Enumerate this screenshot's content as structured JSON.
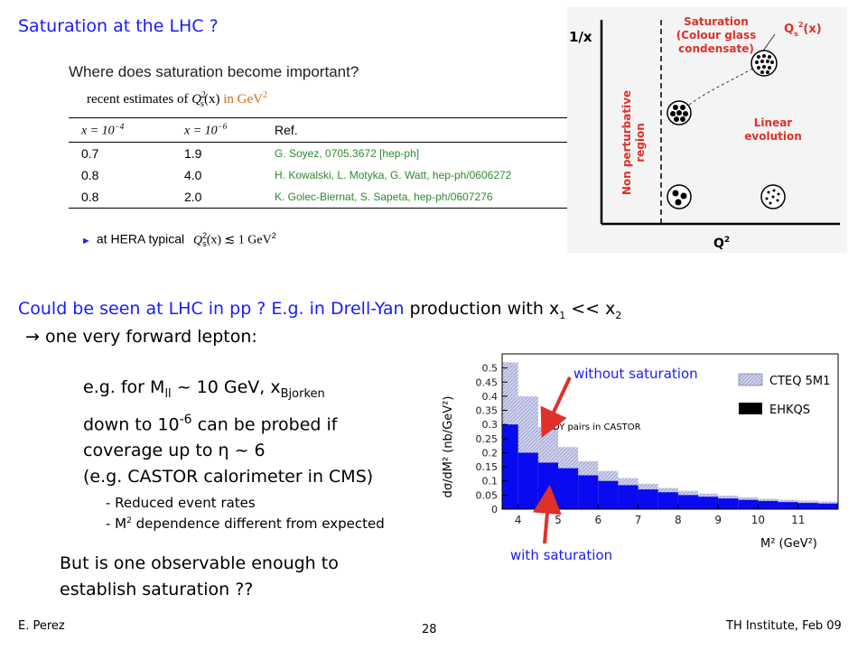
{
  "title": "Saturation at the LHC ?",
  "estimates": {
    "question": "Where does saturation become important?",
    "subtitle_prefix": "recent estimates of ",
    "subtitle_symbol": "Q",
    "subtitle_sup": "2",
    "subtitle_sub": "s",
    "subtitle_arg": "(x)",
    "subtitle_unit": " in GeV",
    "subtitle_unit_sup": "2",
    "headers": [
      "x = 10",
      "x = 10",
      "Ref."
    ],
    "header_exps": [
      "−4",
      "−6"
    ],
    "rows": [
      {
        "a": "0.7",
        "b": "1.9",
        "ref": "G. Soyez, 0705.3672 [hep-ph]"
      },
      {
        "a": "0.8",
        "b": "4.0",
        "ref": "H. Kowalski, L. Motyka, G. Watt, hep-ph/0606272"
      },
      {
        "a": "0.8",
        "b": "2.0",
        "ref": "K. Golec-Biernat, S. Sapeta, hep-ph/0607276"
      }
    ],
    "hera_prefix": "at HERA typical",
    "hera_formula": "Q",
    "hera_formula_rest": "(x) ≲ 1 GeV",
    "hera_sup": "2",
    "hera_sub": "s"
  },
  "phase_diagram": {
    "y_axis": "1/x",
    "x_axis": "Q",
    "x_axis_sup": "2",
    "saturation_lines": [
      "Saturation",
      "(Colour glass",
      "condensate)"
    ],
    "qs_label": "Q",
    "qs_sub": "s",
    "qs_sup": "2",
    "qs_arg": "(x)",
    "linear_lines": [
      "Linear",
      "evolution"
    ],
    "nonpert_lines": [
      "Non perturbative",
      "region"
    ]
  },
  "drell_yan": {
    "part1": "Could be seen at LHC in pp ? E.g. in Drell-Yan",
    "part2": " production with x",
    "x1_sub": "1",
    "part3": " << x",
    "x2_sub": "2",
    "arrow": "→",
    "sub_line": " one very forward lepton:"
  },
  "example": {
    "line1_prefix": "e.g. for M",
    "line1_sub": "ll",
    "line1_mid": " ~ 10 GeV, x",
    "line1_sub2": "Bjorken",
    "line2_prefix": "down to 10",
    "line2_sup": "-6",
    "line2_rest": " can be probed if",
    "line3_prefix": "coverage up to ",
    "line3_eta": "η",
    "line3_rest": " ~ 6",
    "line4": "(e.g. CASTOR calorimeter in CMS)"
  },
  "bullets": {
    "b1": "- Reduced event rates",
    "b2_prefix": "- M",
    "b2_sup": "2",
    "b2_rest": " dependence different from expected"
  },
  "observable": [
    "But is one observable enough to",
    "establish saturation ??"
  ],
  "chart_data": {
    "type": "area",
    "x": [
      3.6,
      4.0,
      4.5,
      5.0,
      5.5,
      6.0,
      6.5,
      7.0,
      7.5,
      8.0,
      8.5,
      9.0,
      9.5,
      10.0,
      10.5,
      11.0,
      11.5,
      12.0
    ],
    "series": [
      {
        "name": "CTEQ 5M1",
        "values": [
          0.52,
          0.4,
          0.29,
          0.22,
          0.17,
          0.135,
          0.11,
          0.09,
          0.075,
          0.065,
          0.055,
          0.048,
          0.042,
          0.037,
          0.033,
          0.03,
          0.027,
          0.025
        ]
      },
      {
        "name": "EHKQS",
        "values": [
          0.3,
          0.2,
          0.165,
          0.145,
          0.12,
          0.1,
          0.085,
          0.07,
          0.06,
          0.05,
          0.044,
          0.038,
          0.033,
          0.029,
          0.025,
          0.022,
          0.02,
          0.018
        ]
      }
    ],
    "annotation": "DY pairs in CASTOR",
    "ylabel": "dσ/dM² (nb/GeV²)",
    "xlabel": "M² (GeV²)",
    "ylim": [
      0,
      0.55
    ],
    "xlim": [
      3.6,
      12
    ],
    "xticks": [
      4,
      5,
      6,
      7,
      8,
      9,
      10,
      11
    ],
    "yticks": [
      0,
      0.05,
      0.1,
      0.15,
      0.2,
      0.25,
      0.3,
      0.35,
      0.4,
      0.45,
      0.5
    ],
    "legend_position": "top-right",
    "colors": {
      "CTEQ 5M1": "#c8ccea",
      "EHKQS": "#0a0af0"
    }
  },
  "labels": {
    "without": "without saturation",
    "with": "with saturation"
  },
  "footer": {
    "author": "E. Perez",
    "page": "28",
    "event": "TH Institute, Feb 09"
  }
}
